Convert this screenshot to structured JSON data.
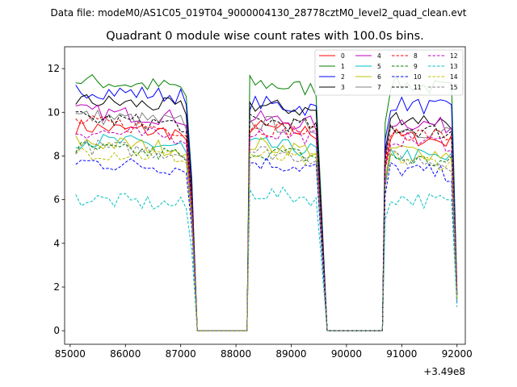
{
  "header": "Data file: modeM0/AS1C05_019T04_9000004130_28778cztM0_level2_quad_clean.evt",
  "chart_data": {
    "type": "line",
    "title": "Quadrant 0 module wise count rates with 100.0s bins.",
    "xlabel": "",
    "ylabel": "",
    "x_offset_label": "+3.49e8",
    "xlim": [
      84900,
      92150
    ],
    "ylim": [
      -0.62,
      13.0
    ],
    "x_ticks": [
      85000,
      86000,
      87000,
      88000,
      89000,
      90000,
      91000,
      92000
    ],
    "x_tick_labels": [
      "85000",
      "86000",
      "87000",
      "88000",
      "89000",
      "90000",
      "91000",
      "92000"
    ],
    "y_ticks": [
      0,
      2,
      4,
      6,
      8,
      10,
      12
    ],
    "y_tick_labels": [
      "0",
      "2",
      "4",
      "6",
      "8",
      "10",
      "12"
    ],
    "legend_position": "top-right",
    "segments": [
      {
        "start": 85100,
        "step": 100,
        "count": 22
      },
      {
        "start": 88250,
        "step": 100,
        "count": 14
      },
      {
        "start": 90700,
        "step": 100,
        "count": 14
      }
    ],
    "series": [
      {
        "name": "0",
        "color": "#ff0000",
        "dash": "solid",
        "levels": [
          9.2,
          9.2,
          8.8
        ]
      },
      {
        "name": "1",
        "color": "#008000",
        "dash": "solid",
        "levels": [
          11.3,
          11.2,
          11.2
        ]
      },
      {
        "name": "2",
        "color": "#0000ff",
        "dash": "solid",
        "levels": [
          10.9,
          10.3,
          10.3
        ]
      },
      {
        "name": "3",
        "color": "#000000",
        "dash": "solid",
        "levels": [
          10.4,
          10.2,
          9.7
        ]
      },
      {
        "name": "4",
        "color": "#c000c0",
        "dash": "solid",
        "levels": [
          9.9,
          9.6,
          9.5
        ]
      },
      {
        "name": "5",
        "color": "#00bfbf",
        "dash": "solid",
        "levels": [
          8.6,
          8.4,
          8.0
        ]
      },
      {
        "name": "6",
        "color": "#bfbf00",
        "dash": "solid",
        "levels": [
          8.5,
          8.4,
          8.2
        ]
      },
      {
        "name": "7",
        "color": "#808080",
        "dash": "solid",
        "levels": [
          9.7,
          9.4,
          9.2
        ]
      },
      {
        "name": "8",
        "color": "#ff0000",
        "dash": "dashed",
        "levels": [
          9.4,
          9.2,
          9.0
        ]
      },
      {
        "name": "9",
        "color": "#008000",
        "dash": "dashed",
        "levels": [
          8.2,
          8.1,
          7.8
        ]
      },
      {
        "name": "10",
        "color": "#0000ff",
        "dash": "dashed",
        "levels": [
          7.6,
          7.6,
          7.3
        ]
      },
      {
        "name": "11",
        "color": "#000000",
        "dash": "dashed",
        "levels": [
          9.6,
          9.5,
          9.2
        ]
      },
      {
        "name": "12",
        "color": "#c000c0",
        "dash": "dashed",
        "levels": [
          9.0,
          9.0,
          8.7
        ]
      },
      {
        "name": "13",
        "color": "#00bfbf",
        "dash": "dashed",
        "levels": [
          5.9,
          6.2,
          6.0
        ]
      },
      {
        "name": "14",
        "color": "#bfbf00",
        "dash": "dashed",
        "levels": [
          8.1,
          7.9,
          7.8
        ]
      },
      {
        "name": "15",
        "color": "#808080",
        "dash": "dashed",
        "levels": [
          8.3,
          8.1,
          7.8
        ]
      }
    ]
  }
}
